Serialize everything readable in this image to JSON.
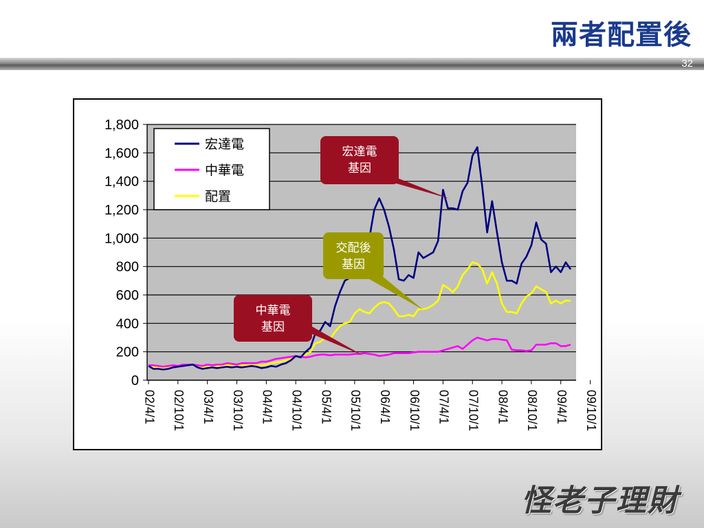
{
  "slide": {
    "title": "兩者配置後",
    "page_number": "32",
    "logo_text": "怪老子理財"
  },
  "colors": {
    "title": "#1a3a8c",
    "plot_bg": "#c0c0c0",
    "htc": "#000080",
    "cht": "#ff00ff",
    "mix": "#ffff00",
    "callout_red": "#9b0f23",
    "callout_olive": "#9a9a00"
  },
  "chart_data": {
    "type": "line",
    "ylim": [
      0,
      1800
    ],
    "yticks": [
      "0",
      "200",
      "400",
      "600",
      "800",
      "1,000",
      "1,200",
      "1,400",
      "1,600",
      "1,800"
    ],
    "yticks_values": [
      0,
      200,
      400,
      600,
      800,
      1000,
      1200,
      1400,
      1600,
      1800
    ],
    "xticks": [
      "02/4/1",
      "02/10/1",
      "03/4/1",
      "03/10/1",
      "04/4/1",
      "04/10/1",
      "05/4/1",
      "05/10/1",
      "06/4/1",
      "06/10/1",
      "07/4/1",
      "07/10/1",
      "08/4/1",
      "08/10/1",
      "09/4/1",
      "09/10/1"
    ],
    "x_months_per_tick": 6,
    "grid": true,
    "legend_position": "top-left",
    "series": [
      {
        "name": "宏達電",
        "color": "#000080",
        "values": [
          100,
          80,
          80,
          75,
          80,
          90,
          95,
          100,
          105,
          110,
          90,
          80,
          85,
          90,
          85,
          90,
          95,
          90,
          95,
          90,
          95,
          100,
          95,
          85,
          90,
          100,
          95,
          110,
          120,
          140,
          170,
          160,
          200,
          230,
          330,
          350,
          410,
          380,
          520,
          620,
          700,
          720,
          800,
          850,
          920,
          1000,
          1200,
          1280,
          1200,
          1080,
          920,
          710,
          700,
          740,
          720,
          900,
          860,
          880,
          900,
          980,
          1340,
          1210,
          1210,
          1200,
          1330,
          1390,
          1580,
          1640,
          1360,
          1040,
          1260,
          1040,
          830,
          700,
          700,
          680,
          820,
          870,
          950,
          1110,
          990,
          960,
          760,
          800,
          760,
          830,
          780
        ]
      },
      {
        "name": "中華電",
        "color": "#ff00ff",
        "values": [
          105,
          105,
          100,
          95,
          100,
          105,
          100,
          110,
          110,
          110,
          105,
          100,
          110,
          105,
          110,
          110,
          120,
          115,
          110,
          120,
          120,
          120,
          120,
          130,
          130,
          140,
          150,
          155,
          160,
          165,
          170,
          165,
          160,
          165,
          175,
          180,
          180,
          175,
          180,
          180,
          180,
          180,
          185,
          185,
          190,
          185,
          180,
          170,
          175,
          180,
          190,
          190,
          190,
          190,
          195,
          200,
          200,
          200,
          200,
          200,
          210,
          220,
          230,
          240,
          220,
          250,
          280,
          300,
          290,
          280,
          290,
          290,
          285,
          280,
          215,
          210,
          210,
          205,
          210,
          250,
          250,
          250,
          260,
          260,
          240,
          240,
          250
        ]
      },
      {
        "name": "配置",
        "color": "#ffff00",
        "values": [
          100,
          90,
          90,
          85,
          85,
          95,
          95,
          105,
          105,
          110,
          95,
          90,
          95,
          95,
          100,
          100,
          105,
          105,
          105,
          105,
          105,
          110,
          110,
          105,
          110,
          120,
          125,
          130,
          140,
          150,
          170,
          165,
          180,
          200,
          260,
          270,
          300,
          290,
          340,
          380,
          400,
          410,
          470,
          500,
          480,
          470,
          510,
          540,
          550,
          540,
          500,
          450,
          450,
          460,
          450,
          500,
          500,
          510,
          530,
          560,
          670,
          650,
          620,
          660,
          740,
          780,
          830,
          820,
          780,
          680,
          760,
          680,
          540,
          480,
          480,
          470,
          540,
          590,
          610,
          660,
          640,
          620,
          540,
          560,
          540,
          560,
          560
        ]
      }
    ],
    "annotations": [
      {
        "text": [
          "宏達電",
          "基因"
        ],
        "style": "red"
      },
      {
        "text": [
          "交配後",
          "基因"
        ],
        "style": "olive"
      },
      {
        "text": [
          "中華電",
          "基因"
        ],
        "style": "red"
      }
    ]
  }
}
